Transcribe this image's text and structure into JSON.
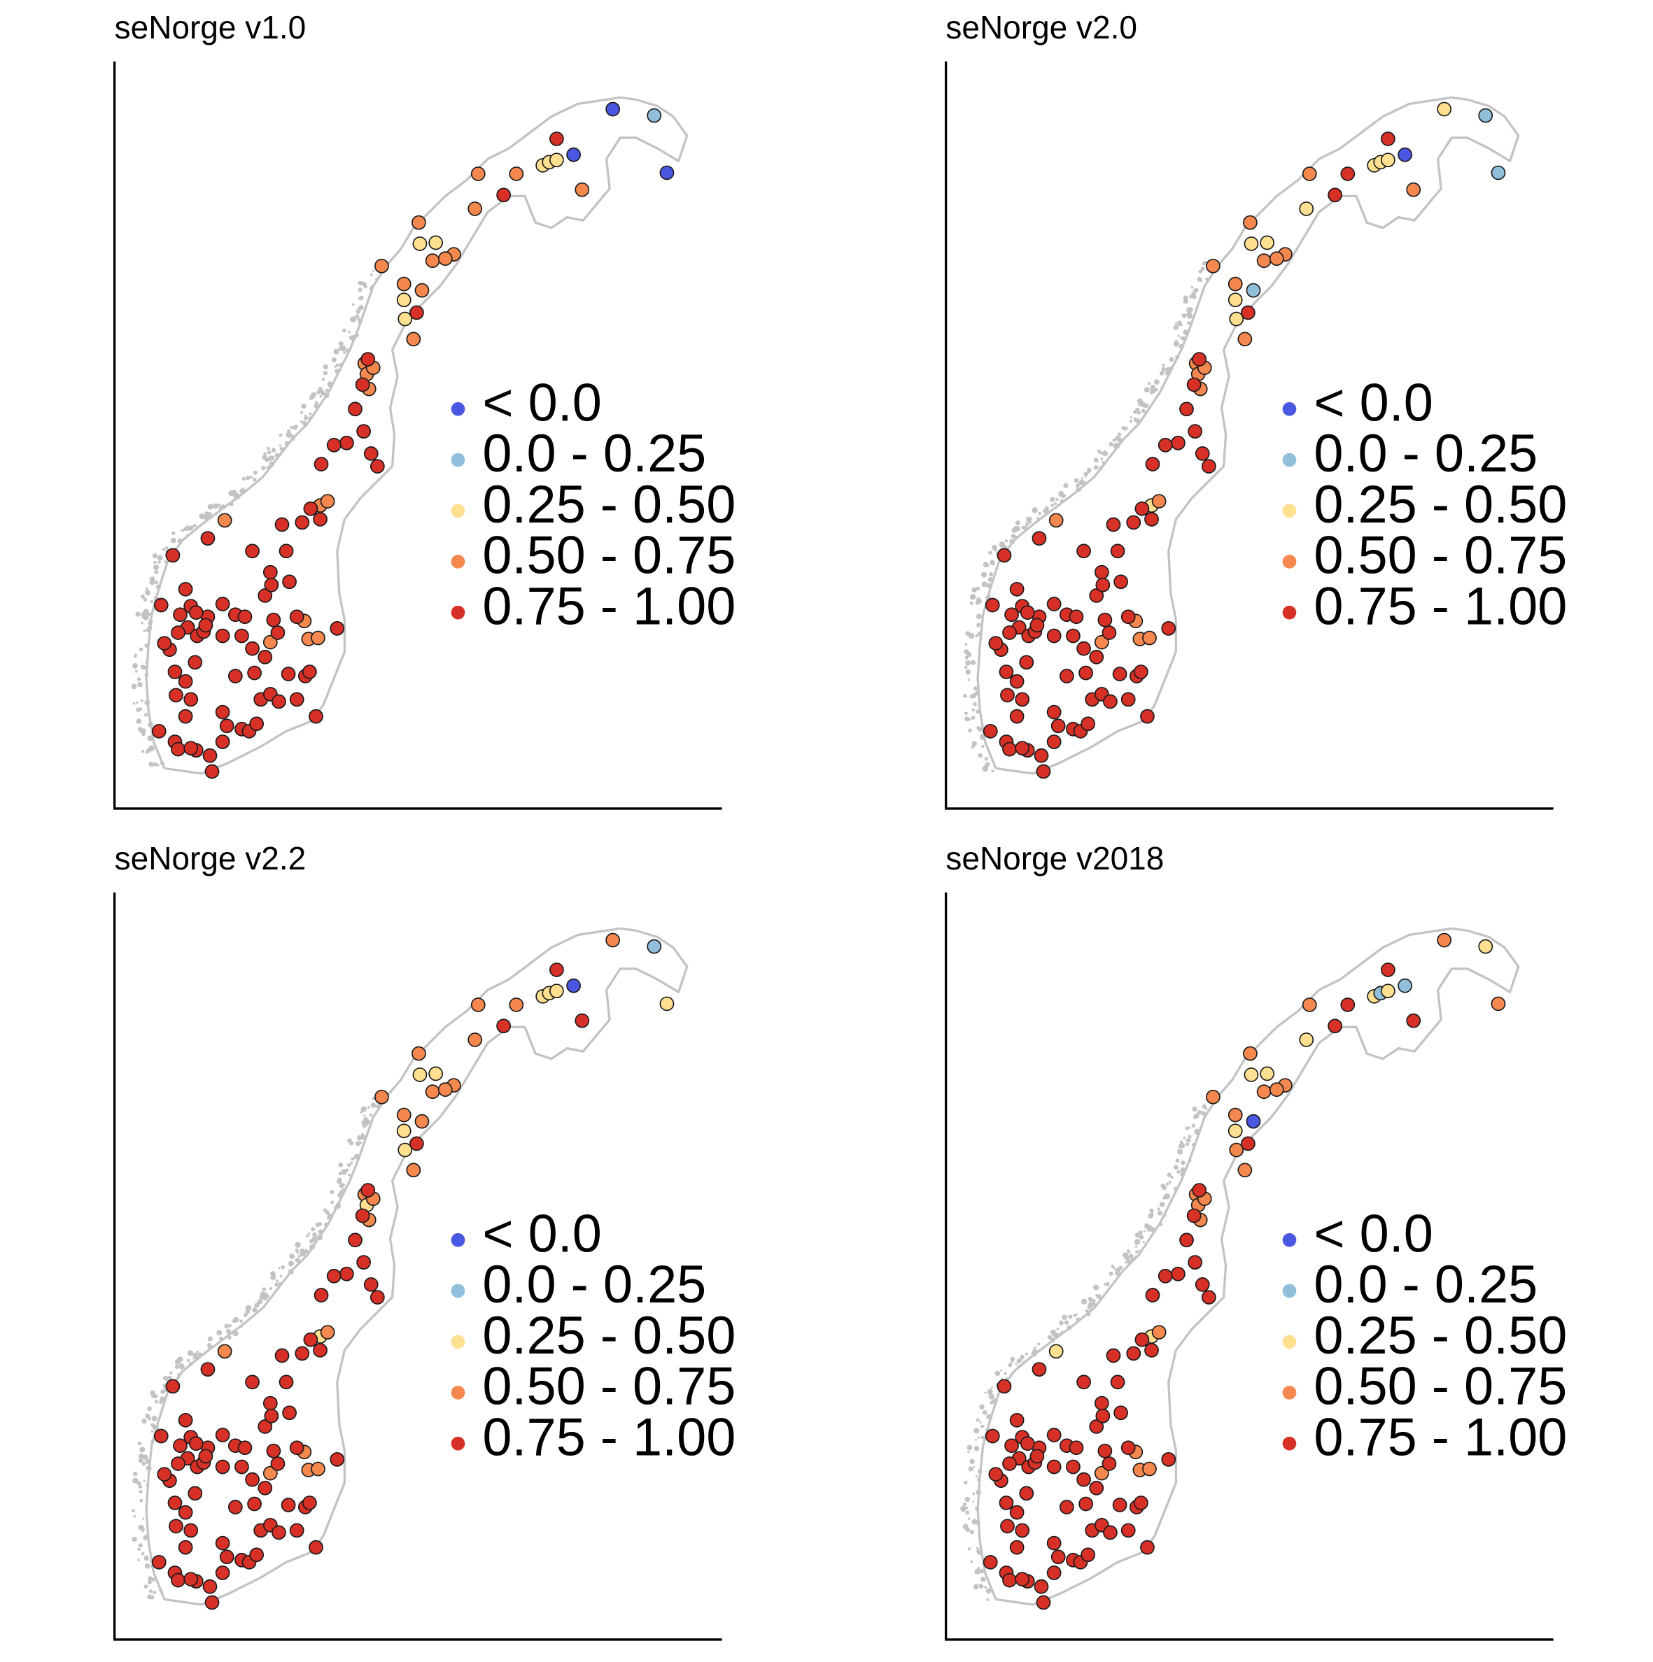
{
  "legend": {
    "classes": [
      {
        "label": "< 0.0",
        "color": "#4a57e0"
      },
      {
        "label": "0.0 - 0.25",
        "color": "#91bfdb"
      },
      {
        "label": "0.25 - 0.50",
        "color": "#fee090"
      },
      {
        "label": "0.50 - 0.75",
        "color": "#f4884f"
      },
      {
        "label": "0.75 - 1.00",
        "color": "#d73027"
      }
    ]
  },
  "colors": {
    "coastline": "#c3c3c3",
    "axis": "#000000",
    "marker_outline": "#1a1a1a"
  },
  "panels": [
    {
      "title": "seNorge v1.0",
      "overrides": [
        [
          0,
          1
        ],
        [
          1,
          0
        ],
        [
          2,
          0
        ],
        [
          3,
          2
        ],
        [
          4,
          2
        ],
        [
          5,
          2
        ],
        [
          6,
          3
        ],
        [
          7,
          0
        ],
        [
          8,
          3
        ],
        [
          9,
          3
        ],
        [
          10,
          3
        ],
        [
          11,
          3
        ],
        [
          12,
          2
        ],
        [
          13,
          2
        ],
        [
          14,
          3
        ],
        [
          15,
          3
        ],
        [
          16,
          3
        ],
        [
          17,
          2
        ],
        [
          18,
          2
        ],
        [
          19,
          3
        ],
        [
          20,
          3
        ],
        [
          21,
          3
        ],
        [
          22,
          3
        ],
        [
          23,
          3
        ],
        [
          24,
          3
        ],
        [
          25,
          3
        ],
        [
          26,
          3
        ],
        [
          27,
          3
        ],
        [
          28,
          3
        ],
        [
          29,
          3
        ],
        [
          30,
          3
        ],
        [
          31,
          3
        ],
        [
          32,
          3
        ],
        [
          33,
          3
        ]
      ]
    },
    {
      "title": "seNorge v2.0",
      "overrides": [
        [
          0,
          1
        ],
        [
          1,
          2
        ],
        [
          2,
          1
        ],
        [
          3,
          2
        ],
        [
          4,
          2
        ],
        [
          5,
          2
        ],
        [
          6,
          3
        ],
        [
          7,
          0
        ],
        [
          8,
          4
        ],
        [
          9,
          3
        ],
        [
          10,
          2
        ],
        [
          11,
          3
        ],
        [
          12,
          2
        ],
        [
          13,
          2
        ],
        [
          14,
          3
        ],
        [
          15,
          3
        ],
        [
          16,
          1
        ],
        [
          17,
          2
        ],
        [
          18,
          2
        ],
        [
          19,
          3
        ],
        [
          20,
          3
        ],
        [
          21,
          3
        ],
        [
          22,
          3
        ],
        [
          23,
          2
        ],
        [
          24,
          3
        ],
        [
          25,
          3
        ],
        [
          26,
          3
        ],
        [
          27,
          3
        ],
        [
          28,
          3
        ],
        [
          29,
          3
        ],
        [
          30,
          3
        ],
        [
          31,
          3
        ],
        [
          32,
          3
        ],
        [
          33,
          3
        ]
      ]
    },
    {
      "title": "seNorge v2.2",
      "overrides": [
        [
          0,
          1
        ],
        [
          1,
          3
        ],
        [
          2,
          2
        ],
        [
          3,
          2
        ],
        [
          4,
          2
        ],
        [
          5,
          2
        ],
        [
          6,
          4
        ],
        [
          7,
          0
        ],
        [
          8,
          3
        ],
        [
          9,
          3
        ],
        [
          10,
          3
        ],
        [
          11,
          3
        ],
        [
          12,
          2
        ],
        [
          13,
          2
        ],
        [
          14,
          3
        ],
        [
          15,
          3
        ],
        [
          16,
          3
        ],
        [
          17,
          2
        ],
        [
          18,
          2
        ],
        [
          19,
          3
        ],
        [
          20,
          3
        ],
        [
          21,
          3
        ],
        [
          22,
          3
        ],
        [
          23,
          2
        ],
        [
          24,
          3
        ],
        [
          25,
          2
        ],
        [
          26,
          3
        ],
        [
          27,
          3
        ],
        [
          28,
          3
        ],
        [
          29,
          3
        ],
        [
          30,
          3
        ],
        [
          31,
          3
        ],
        [
          32,
          3
        ],
        [
          33,
          3
        ]
      ]
    },
    {
      "title": "seNorge v2018",
      "overrides": [
        [
          0,
          2
        ],
        [
          1,
          3
        ],
        [
          2,
          3
        ],
        [
          3,
          2
        ],
        [
          4,
          1
        ],
        [
          5,
          2
        ],
        [
          6,
          4
        ],
        [
          7,
          1
        ],
        [
          8,
          4
        ],
        [
          9,
          3
        ],
        [
          10,
          2
        ],
        [
          11,
          3
        ],
        [
          12,
          2
        ],
        [
          13,
          2
        ],
        [
          14,
          3
        ],
        [
          15,
          3
        ],
        [
          16,
          0
        ],
        [
          17,
          2
        ],
        [
          18,
          3
        ],
        [
          19,
          3
        ],
        [
          20,
          3
        ],
        [
          21,
          3
        ],
        [
          22,
          3
        ],
        [
          23,
          2
        ],
        [
          24,
          3
        ],
        [
          25,
          3
        ],
        [
          26,
          3
        ],
        [
          27,
          3
        ],
        [
          28,
          2
        ],
        [
          29,
          3
        ],
        [
          30,
          3
        ],
        [
          31,
          3
        ],
        [
          32,
          3
        ],
        [
          33,
          3
        ]
      ]
    }
  ]
}
